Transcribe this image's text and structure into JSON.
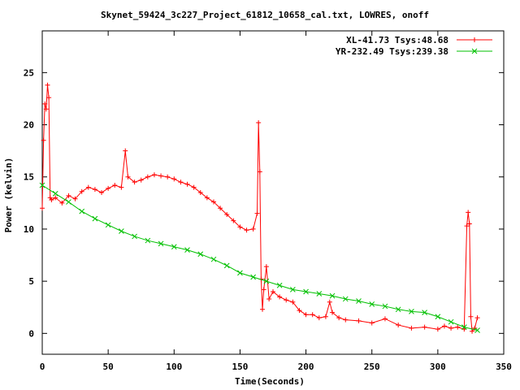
{
  "chart_data": {
    "type": "line",
    "title": "Skynet_59424_3c227_Project_61812_10658_cal.txt, LOWRES, onoff",
    "xlabel": "Time(Seconds)",
    "ylabel": "Power (kelvin)",
    "xlim": [
      0,
      350
    ],
    "ylim": [
      -2,
      29
    ],
    "xticks": [
      0,
      50,
      100,
      150,
      200,
      250,
      300,
      350
    ],
    "yticks": [
      0,
      5,
      10,
      15,
      20,
      25
    ],
    "legend_position": "top-right",
    "grid": false,
    "series": [
      {
        "name": "XL-41.73 Tsys:48.68",
        "color": "#ff0000",
        "marker": "plus",
        "points": [
          [
            0,
            12
          ],
          [
            1,
            18.5
          ],
          [
            2,
            22
          ],
          [
            3,
            21.5
          ],
          [
            4,
            23.8
          ],
          [
            5,
            22.6
          ],
          [
            6,
            13
          ],
          [
            7,
            12.8
          ],
          [
            10,
            13
          ],
          [
            15,
            12.5
          ],
          [
            20,
            13.2
          ],
          [
            25,
            12.9
          ],
          [
            30,
            13.6
          ],
          [
            35,
            14
          ],
          [
            40,
            13.8
          ],
          [
            45,
            13.5
          ],
          [
            50,
            13.9
          ],
          [
            55,
            14.2
          ],
          [
            60,
            14
          ],
          [
            63,
            17.5
          ],
          [
            65,
            15
          ],
          [
            70,
            14.5
          ],
          [
            75,
            14.7
          ],
          [
            80,
            15
          ],
          [
            85,
            15.2
          ],
          [
            90,
            15.1
          ],
          [
            95,
            15
          ],
          [
            100,
            14.8
          ],
          [
            105,
            14.5
          ],
          [
            110,
            14.3
          ],
          [
            115,
            14
          ],
          [
            120,
            13.5
          ],
          [
            125,
            13
          ],
          [
            130,
            12.6
          ],
          [
            135,
            12
          ],
          [
            140,
            11.4
          ],
          [
            145,
            10.8
          ],
          [
            150,
            10.2
          ],
          [
            155,
            9.9
          ],
          [
            160,
            10
          ],
          [
            163,
            11.5
          ],
          [
            164,
            20.2
          ],
          [
            165,
            15.5
          ],
          [
            166,
            5.2
          ],
          [
            167,
            2.3
          ],
          [
            168,
            4.2
          ],
          [
            170,
            6.4
          ],
          [
            172,
            3.3
          ],
          [
            175,
            4
          ],
          [
            180,
            3.5
          ],
          [
            185,
            3.2
          ],
          [
            190,
            3
          ],
          [
            195,
            2.2
          ],
          [
            200,
            1.8
          ],
          [
            205,
            1.8
          ],
          [
            210,
            1.5
          ],
          [
            215,
            1.6
          ],
          [
            218,
            3
          ],
          [
            220,
            2
          ],
          [
            225,
            1.5
          ],
          [
            230,
            1.3
          ],
          [
            240,
            1.2
          ],
          [
            250,
            1
          ],
          [
            260,
            1.4
          ],
          [
            270,
            0.8
          ],
          [
            280,
            0.5
          ],
          [
            290,
            0.6
          ],
          [
            300,
            0.4
          ],
          [
            305,
            0.7
          ],
          [
            310,
            0.5
          ],
          [
            315,
            0.6
          ],
          [
            320,
            0.4
          ],
          [
            322,
            10.3
          ],
          [
            323,
            11.6
          ],
          [
            324,
            10.5
          ],
          [
            325,
            1.6
          ],
          [
            326,
            0.2
          ],
          [
            328,
            0.5
          ],
          [
            330,
            1.5
          ]
        ]
      },
      {
        "name": "YR-232.49 Tsys:239.38",
        "color": "#00c000",
        "marker": "cross",
        "points": [
          [
            0,
            14.2
          ],
          [
            10,
            13.4
          ],
          [
            20,
            12.6
          ],
          [
            30,
            11.7
          ],
          [
            40,
            11
          ],
          [
            50,
            10.4
          ],
          [
            60,
            9.8
          ],
          [
            70,
            9.3
          ],
          [
            80,
            8.9
          ],
          [
            90,
            8.6
          ],
          [
            100,
            8.3
          ],
          [
            110,
            8
          ],
          [
            120,
            7.6
          ],
          [
            130,
            7.1
          ],
          [
            140,
            6.5
          ],
          [
            150,
            5.8
          ],
          [
            160,
            5.4
          ],
          [
            170,
            5
          ],
          [
            180,
            4.6
          ],
          [
            190,
            4.2
          ],
          [
            200,
            4
          ],
          [
            210,
            3.8
          ],
          [
            220,
            3.6
          ],
          [
            230,
            3.3
          ],
          [
            240,
            3.1
          ],
          [
            250,
            2.8
          ],
          [
            260,
            2.6
          ],
          [
            270,
            2.3
          ],
          [
            280,
            2.1
          ],
          [
            290,
            2
          ],
          [
            300,
            1.6
          ],
          [
            310,
            1.1
          ],
          [
            320,
            0.6
          ],
          [
            330,
            0.3
          ]
        ]
      }
    ]
  }
}
